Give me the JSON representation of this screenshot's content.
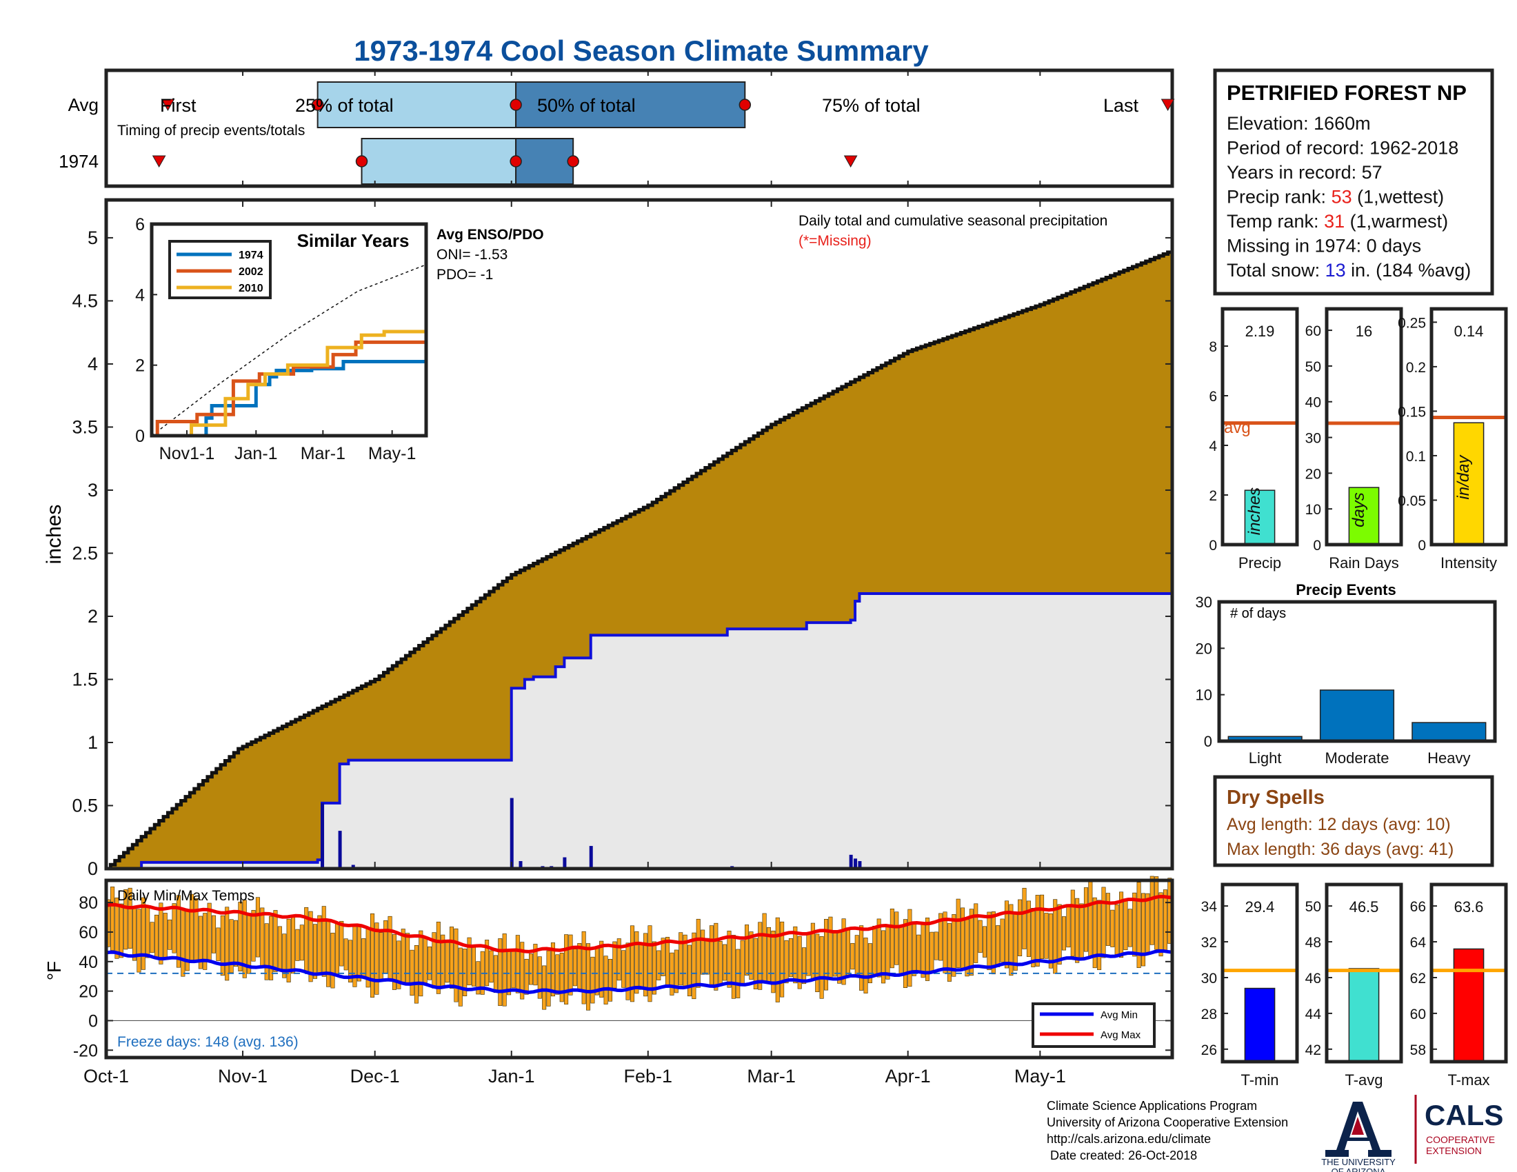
{
  "title": "1973-1974 Cool Season Climate Summary",
  "timing": {
    "row_labels": [
      "Avg",
      "1974"
    ],
    "caption": "Timing of precip events/totals",
    "first_label": "First",
    "last_label": "Last",
    "pct25_label": "25% of total",
    "pct50_label": "50% of total",
    "pct75_label": "75% of total"
  },
  "station": {
    "name": "PETRIFIED FOREST NP",
    "lines": [
      {
        "pre": "Elevation: 1660m",
        "hl": "",
        "post": ""
      },
      {
        "pre": "Period of record: 1962-2018",
        "hl": "",
        "post": ""
      },
      {
        "pre": "Years in record: 57",
        "hl": "",
        "post": ""
      },
      {
        "pre": "Precip rank: ",
        "hl": "53",
        "post": " (1,wettest)"
      },
      {
        "pre": "Temp rank: ",
        "hl": "31",
        "post": " (1,warmest)"
      },
      {
        "pre": "Missing in 1974: 0 days",
        "hl": "",
        "post": ""
      },
      {
        "pre": "Total snow: ",
        "hl": "13",
        "post": " in. (184 %avg)"
      }
    ],
    "hl_colors": [
      "",
      "",
      "",
      "#e8211b",
      "#e8211b",
      "",
      "#1a1ad0"
    ]
  },
  "main_panel": {
    "annotation": "Daily total and cumulative seasonal precipitation",
    "missing_note": "(*=Missing)",
    "ylabel": "inches",
    "enso_title": "Avg ENSO/PDO",
    "oni": "ONI= -1.53",
    "pdo": "PDO= -1"
  },
  "inset": {
    "title": "Similar Years",
    "legend": [
      "1974",
      "2002",
      "2010"
    ]
  },
  "temp_panel": {
    "title": "Daily Min/Max Temps",
    "ylabel": "°F",
    "freeze_text": "Freeze days: 148 (avg. 136)",
    "legend": [
      "Avg Min",
      "Avg Max"
    ]
  },
  "precip_bars": {
    "avg_label": "avg",
    "titles": [
      "Precip",
      "Rain Days",
      "Intensity"
    ],
    "units": [
      "inches",
      "days",
      "in/day"
    ],
    "value_labels": [
      "2.19",
      "16",
      "0.14"
    ]
  },
  "events": {
    "title": "Precip Events",
    "ylabel": "# of days"
  },
  "dry_spells": {
    "title": "Dry Spells",
    "avg_text": "Avg length: 12 days (avg: 10)",
    "max_text": "Max length: 36 days (avg: 41)"
  },
  "temp_bars": {
    "titles": [
      "T-min",
      "T-avg",
      "T-max"
    ],
    "value_labels": [
      "29.4",
      "46.5",
      "63.6"
    ]
  },
  "footer": {
    "lines": [
      "Climate Science Applications Program",
      "University of Arizona Cooperative Extension",
      "http://cals.arizona.edu/climate",
      " Date created: 26-Oct-2018"
    ],
    "ua_line1": "THE UNIVERSITY",
    "ua_line2": "OF ARIZONA",
    "cals": "CALS",
    "coop1": "COOPERATIVE",
    "coop2": "EXTENSION"
  },
  "colors": {
    "title": "#0b4f9c",
    "avg_cumulative_fill": "#b8860b",
    "season_cumulative_fill": "#e8e8e8",
    "season_line": "#1010d8",
    "avg_line": "#d95319",
    "bar25": "#a6d4ea",
    "bar50": "#4682b4",
    "marker": "#e00000",
    "temp_bar": "#f7a21b",
    "avg_min": "#0000ee",
    "avg_max": "#ee0000",
    "freeze_text": "#1f6fbf",
    "dry_spell_text": "#8b4513",
    "series_1974": "#0072bd",
    "series_2002": "#d95319",
    "series_2010": "#edb120",
    "events_bar": "#0072bd"
  },
  "chart_data": [
    {
      "id": "timing",
      "type": "timeline",
      "x_ticks": [
        "Oct-1",
        "Nov-1",
        "Dec-1",
        "Jan-1",
        "Feb-1",
        "Mar-1",
        "Apr-1",
        "May-1"
      ],
      "avg": {
        "first": "Oct-15",
        "p25": "Nov-18",
        "p50": "Jan-2",
        "p75": "Feb-23",
        "last": "May-30"
      },
      "season_1974": {
        "first": "Oct-13",
        "p25": "Nov-28",
        "p50": "Jan-2",
        "p75": "Jan-15",
        "last": "Mar-19"
      }
    },
    {
      "id": "cumulative_precip",
      "type": "area",
      "ylabel": "inches",
      "ylim": [
        0,
        5.3
      ],
      "yticks": [
        0,
        0.5,
        1,
        1.5,
        2,
        2.5,
        3,
        3.5,
        4,
        4.5,
        5
      ],
      "x_ticks": [
        "Oct-1",
        "Nov-1",
        "Dec-1",
        "Jan-1",
        "Feb-1",
        "Mar-1",
        "Apr-1",
        "May-1"
      ],
      "x_tick_days": [
        0,
        31,
        61,
        92,
        123,
        151,
        182,
        212
      ],
      "x_range_days": [
        0,
        242
      ],
      "series": [
        {
          "name": "Average cumulative",
          "x": [
            0,
            30,
            61,
            92,
            123,
            151,
            182,
            212,
            242
          ],
          "values": [
            0.0,
            0.95,
            1.5,
            2.33,
            2.88,
            3.52,
            4.1,
            4.47,
            4.9
          ]
        },
        {
          "name": "1973-1974 cumulative",
          "steps": [
            [
              0,
              0.0
            ],
            [
              8,
              0.05
            ],
            [
              48,
              0.07
            ],
            [
              49,
              0.52
            ],
            [
              53,
              0.83
            ],
            [
              55,
              0.86
            ],
            [
              92,
              1.43
            ],
            [
              95,
              1.5
            ],
            [
              97,
              1.52
            ],
            [
              102,
              1.6
            ],
            [
              104,
              1.67
            ],
            [
              110,
              1.85
            ],
            [
              141,
              1.9
            ],
            [
              159,
              1.95
            ],
            [
              169,
              1.97
            ],
            [
              170,
              2.12
            ],
            [
              171,
              2.18
            ],
            [
              242,
              2.19
            ]
          ]
        }
      ],
      "daily_totals": [
        [
          49,
          0.52
        ],
        [
          53,
          0.3
        ],
        [
          56,
          0.03
        ],
        [
          92,
          0.56
        ],
        [
          94,
          0.06
        ],
        [
          99,
          0.02
        ],
        [
          101,
          0.02
        ],
        [
          104,
          0.09
        ],
        [
          110,
          0.18
        ],
        [
          142,
          0.02
        ],
        [
          169,
          0.11
        ],
        [
          170,
          0.08
        ],
        [
          171,
          0.06
        ]
      ]
    },
    {
      "id": "similar_years",
      "type": "line",
      "title": "Similar Years",
      "ylim": [
        0,
        6
      ],
      "yticks": [
        0,
        2,
        4,
        6
      ],
      "x_ticks": [
        "Nov1-1",
        "Jan-1",
        "Mar-1",
        "May-1"
      ],
      "series": [
        {
          "name": "1974",
          "steps": [
            [
              0,
              0.0
            ],
            [
              48,
              0.5
            ],
            [
              53,
              0.85
            ],
            [
              92,
              1.45
            ],
            [
              104,
              1.67
            ],
            [
              110,
              1.85
            ],
            [
              141,
              1.9
            ],
            [
              169,
              2.1
            ],
            [
              242,
              2.19
            ]
          ]
        },
        {
          "name": "2002",
          "steps": [
            [
              0,
              0.0
            ],
            [
              5,
              0.4
            ],
            [
              40,
              0.6
            ],
            [
              72,
              1.55
            ],
            [
              95,
              1.75
            ],
            [
              125,
              1.95
            ],
            [
              160,
              2.3
            ],
            [
              180,
              2.65
            ],
            [
              242,
              2.75
            ]
          ]
        },
        {
          "name": "2010",
          "steps": [
            [
              0,
              0.0
            ],
            [
              35,
              0.3
            ],
            [
              65,
              1.05
            ],
            [
              85,
              1.45
            ],
            [
              100,
              1.75
            ],
            [
              120,
              2.0
            ],
            [
              155,
              2.5
            ],
            [
              185,
              2.85
            ],
            [
              205,
              2.95
            ],
            [
              242,
              2.95
            ]
          ]
        },
        {
          "name": "Average",
          "x": [
            0,
            61,
            122,
            182,
            242
          ],
          "values": [
            0.0,
            1.5,
            2.9,
            4.1,
            4.85
          ]
        }
      ]
    },
    {
      "id": "daily_temps",
      "type": "bar",
      "title": "Daily Min/Max Temps",
      "ylabel": "°F",
      "ylim": [
        -25,
        95
      ],
      "yticks": [
        -20,
        0,
        20,
        40,
        60,
        80
      ],
      "freeze_line": 32,
      "series": [
        {
          "name": "Avg Max",
          "x": [
            0,
            15,
            30,
            45,
            61,
            76,
            92,
            107,
            123,
            137,
            151,
            166,
            182,
            197,
            212,
            227,
            242
          ],
          "values": [
            78,
            76,
            73,
            70,
            62,
            54,
            47,
            49,
            52,
            55,
            58,
            61,
            65,
            70,
            75,
            80,
            84
          ]
        },
        {
          "name": "Avg Min",
          "x": [
            0,
            15,
            30,
            45,
            61,
            76,
            92,
            107,
            123,
            137,
            151,
            166,
            182,
            197,
            212,
            227,
            242
          ],
          "values": [
            46,
            42,
            38,
            33,
            28,
            23,
            20,
            20,
            22,
            24,
            26,
            29,
            32,
            36,
            40,
            44,
            47
          ]
        },
        {
          "name": "Daily range (approx. max)",
          "x": [
            0,
            15,
            30,
            45,
            61,
            76,
            92,
            107,
            123,
            137,
            151,
            166,
            182,
            197,
            212,
            227,
            242
          ],
          "values": [
            82,
            76,
            74,
            68,
            62,
            56,
            48,
            50,
            55,
            58,
            62,
            60,
            67,
            72,
            80,
            84,
            90
          ]
        },
        {
          "name": "Daily range (approx. min)",
          "x": [
            0,
            15,
            30,
            45,
            61,
            76,
            92,
            107,
            123,
            137,
            151,
            166,
            182,
            197,
            212,
            227,
            242
          ],
          "values": [
            44,
            40,
            34,
            32,
            24,
            20,
            18,
            14,
            20,
            24,
            22,
            26,
            30,
            36,
            40,
            44,
            46
          ]
        }
      ]
    },
    {
      "id": "precip_total",
      "type": "bar",
      "categories": [
        "Precip"
      ],
      "values": [
        2.19
      ],
      "avg": 4.9,
      "ylim": [
        0,
        9.5
      ],
      "yticks": [
        0,
        2,
        4,
        6,
        8
      ]
    },
    {
      "id": "rain_days",
      "type": "bar",
      "categories": [
        "Rain Days"
      ],
      "values": [
        16
      ],
      "avg": 34,
      "ylim": [
        0,
        66
      ],
      "yticks": [
        0,
        10,
        20,
        30,
        40,
        50,
        60
      ]
    },
    {
      "id": "intensity",
      "type": "bar",
      "categories": [
        "Intensity"
      ],
      "values": [
        0.137
      ],
      "avg": 0.143,
      "ylim": [
        0,
        0.265
      ],
      "yticks": [
        0,
        0.05,
        0.1,
        0.15,
        0.2,
        0.25
      ],
      "ytick_labels": [
        "0",
        "0.05",
        "0.1",
        "0.15",
        "0.2",
        "0.25"
      ]
    },
    {
      "id": "precip_events",
      "type": "bar",
      "title": "Precip Events",
      "categories": [
        "Light",
        "Moderate",
        "Heavy"
      ],
      "values": [
        1,
        11,
        4
      ],
      "ylim": [
        0,
        30
      ],
      "yticks": [
        0,
        10,
        20,
        30
      ]
    },
    {
      "id": "t_min",
      "type": "bar",
      "categories": [
        "T-min"
      ],
      "values": [
        29.4
      ],
      "avg": 30.4,
      "ylim": [
        25.3,
        35.2
      ],
      "yticks": [
        26,
        28,
        30,
        32,
        34
      ]
    },
    {
      "id": "t_avg",
      "type": "bar",
      "categories": [
        "T-avg"
      ],
      "values": [
        46.5
      ],
      "avg": 46.4,
      "ylim": [
        41.3,
        51.2
      ],
      "yticks": [
        42,
        44,
        46,
        48,
        50
      ]
    },
    {
      "id": "t_max",
      "type": "bar",
      "categories": [
        "T-max"
      ],
      "values": [
        63.6
      ],
      "avg": 62.4,
      "ylim": [
        57.3,
        67.2
      ],
      "yticks": [
        58,
        60,
        62,
        64,
        66
      ]
    }
  ]
}
